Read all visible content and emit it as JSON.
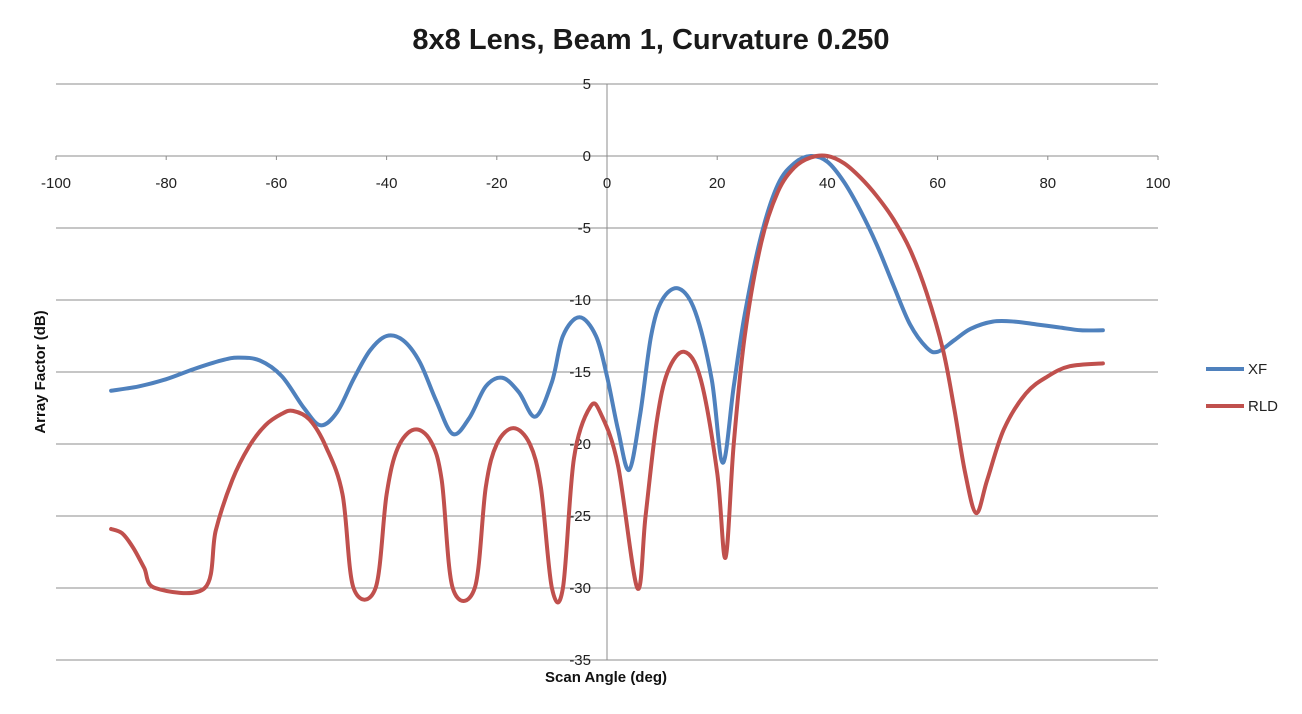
{
  "chart_data": {
    "type": "line",
    "title": "8x8 Lens, Beam 1, Curvature 0.250",
    "xlabel": "Scan Angle (deg)",
    "ylabel": "Array Factor (dB)",
    "xlim": [
      -100,
      100
    ],
    "ylim": [
      -35,
      5
    ],
    "xticks": [
      "-100",
      "-80",
      "-60",
      "-40",
      "-20",
      "0",
      "20",
      "40",
      "60",
      "80",
      "100"
    ],
    "yticks": [
      "5",
      "0",
      "-5",
      "-10",
      "-15",
      "-20",
      "-25",
      "-30",
      "-35"
    ],
    "grid": "horizontal",
    "legend": "right",
    "series": [
      {
        "name": "XF",
        "color": "#4F81BD",
        "points": [
          [
            -90,
            -16.3
          ],
          [
            -85,
            -16.0
          ],
          [
            -80,
            -15.5
          ],
          [
            -75,
            -14.8
          ],
          [
            -70,
            -14.2
          ],
          [
            -67,
            -14.0
          ],
          [
            -63,
            -14.2
          ],
          [
            -59,
            -15.3
          ],
          [
            -55,
            -17.5
          ],
          [
            -52,
            -18.7
          ],
          [
            -49,
            -17.8
          ],
          [
            -46,
            -15.5
          ],
          [
            -43,
            -13.5
          ],
          [
            -40,
            -12.5
          ],
          [
            -37,
            -12.8
          ],
          [
            -34,
            -14.3
          ],
          [
            -31,
            -17.0
          ],
          [
            -28,
            -19.3
          ],
          [
            -25,
            -18.2
          ],
          [
            -22,
            -16.0
          ],
          [
            -19,
            -15.4
          ],
          [
            -16,
            -16.4
          ],
          [
            -13,
            -18.1
          ],
          [
            -10,
            -15.7
          ],
          [
            -8,
            -12.5
          ],
          [
            -5,
            -11.2
          ],
          [
            -2,
            -12.5
          ],
          [
            0,
            -15.3
          ],
          [
            2,
            -19.0
          ],
          [
            4,
            -21.8
          ],
          [
            6,
            -18.0
          ],
          [
            8,
            -12.5
          ],
          [
            10,
            -10.0
          ],
          [
            13,
            -9.2
          ],
          [
            16,
            -10.8
          ],
          [
            19,
            -15.5
          ],
          [
            21,
            -21.3
          ],
          [
            23,
            -16.0
          ],
          [
            25,
            -11.0
          ],
          [
            28,
            -5.5
          ],
          [
            31,
            -2.0
          ],
          [
            34,
            -0.5
          ],
          [
            37,
            0.0
          ],
          [
            40,
            -0.4
          ],
          [
            43,
            -1.8
          ],
          [
            46,
            -3.8
          ],
          [
            49,
            -6.2
          ],
          [
            52,
            -9.0
          ],
          [
            55,
            -11.7
          ],
          [
            58,
            -13.3
          ],
          [
            60,
            -13.6
          ],
          [
            63,
            -12.8
          ],
          [
            66,
            -12.0
          ],
          [
            70,
            -11.5
          ],
          [
            74,
            -11.5
          ],
          [
            78,
            -11.7
          ],
          [
            82,
            -11.9
          ],
          [
            86,
            -12.1
          ],
          [
            90,
            -12.1
          ]
        ]
      },
      {
        "name": "RLD",
        "color": "#C0504D",
        "points": [
          [
            -90,
            -25.9
          ],
          [
            -88,
            -26.2
          ],
          [
            -86,
            -27.2
          ],
          [
            -84,
            -28.6
          ],
          [
            -82,
            -30.0
          ],
          [
            -73,
            -30.0
          ],
          [
            -71,
            -26.0
          ],
          [
            -68,
            -22.5
          ],
          [
            -65,
            -20.2
          ],
          [
            -62,
            -18.7
          ],
          [
            -59,
            -17.9
          ],
          [
            -57,
            -17.7
          ],
          [
            -54,
            -18.3
          ],
          [
            -51,
            -20.2
          ],
          [
            -48,
            -23.5
          ],
          [
            -46,
            -30.0
          ],
          [
            -42,
            -30.0
          ],
          [
            -40,
            -23.5
          ],
          [
            -38,
            -20.3
          ],
          [
            -35,
            -19.0
          ],
          [
            -32,
            -19.8
          ],
          [
            -30,
            -22.5
          ],
          [
            -28,
            -30.0
          ],
          [
            -24,
            -30.0
          ],
          [
            -22,
            -23.0
          ],
          [
            -20,
            -20.0
          ],
          [
            -17,
            -18.9
          ],
          [
            -14,
            -20.0
          ],
          [
            -12,
            -23.0
          ],
          [
            -10,
            -30.0
          ],
          [
            -8,
            -30.0
          ],
          [
            -6,
            -21.0
          ],
          [
            -3,
            -17.4
          ],
          [
            -1,
            -18.0
          ],
          [
            2,
            -21.5
          ],
          [
            5.5,
            -30.0
          ],
          [
            7,
            -25.0
          ],
          [
            9,
            -18.5
          ],
          [
            11,
            -15.0
          ],
          [
            14,
            -13.6
          ],
          [
            17,
            -15.5
          ],
          [
            20,
            -22.0
          ],
          [
            21.5,
            -27.9
          ],
          [
            23,
            -20.0
          ],
          [
            25,
            -12.5
          ],
          [
            28,
            -6.0
          ],
          [
            31,
            -2.5
          ],
          [
            34,
            -0.8
          ],
          [
            37,
            -0.1
          ],
          [
            40,
            0.0
          ],
          [
            43,
            -0.5
          ],
          [
            46,
            -1.5
          ],
          [
            49,
            -2.8
          ],
          [
            52,
            -4.4
          ],
          [
            55,
            -6.5
          ],
          [
            58,
            -9.5
          ],
          [
            61,
            -13.5
          ],
          [
            63,
            -17.5
          ],
          [
            65,
            -22.0
          ],
          [
            67,
            -24.8
          ],
          [
            69,
            -22.5
          ],
          [
            72,
            -19.0
          ],
          [
            76,
            -16.5
          ],
          [
            80,
            -15.3
          ],
          [
            84,
            -14.6
          ],
          [
            90,
            -14.4
          ]
        ]
      }
    ]
  }
}
